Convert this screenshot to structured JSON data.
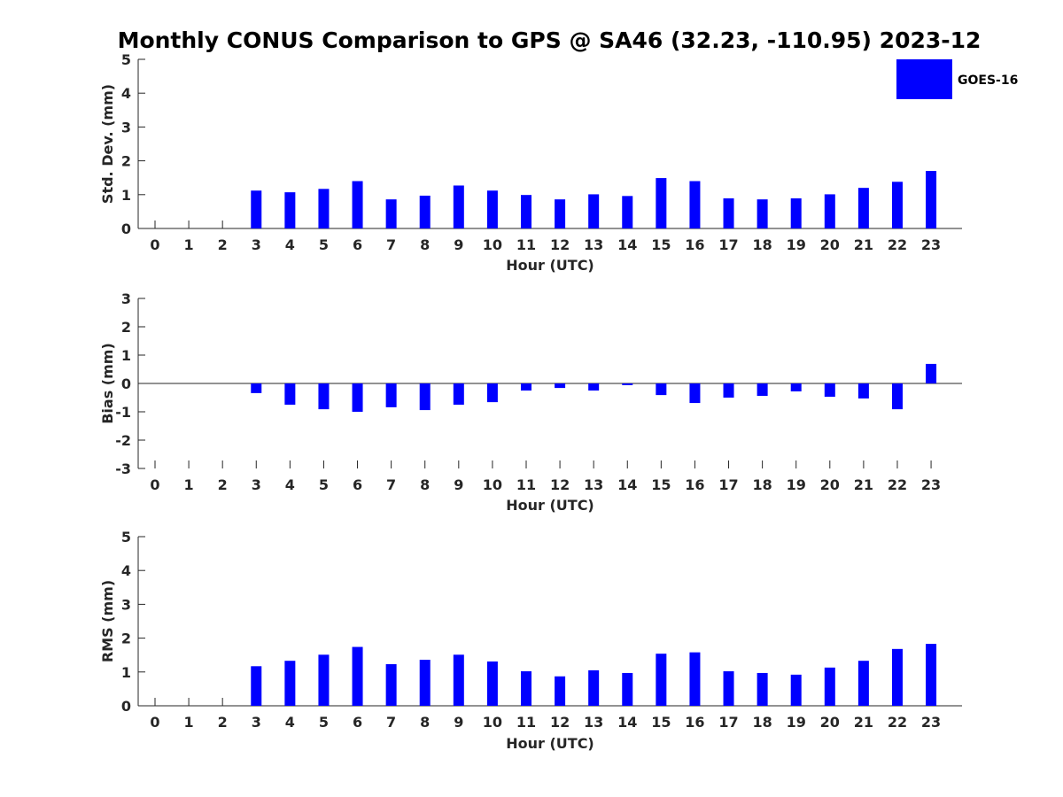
{
  "chart_data": {
    "title": "Monthly CONUS Comparison to GPS @ SA46 (32.23, -110.95) 2023-12",
    "legend": {
      "series_name": "GOES-16",
      "color": "#0000ff",
      "placement": "top-right"
    },
    "panels": [
      {
        "type": "bar",
        "xlabel": "Hour (UTC)",
        "ylabel": "Std. Dev. (mm)",
        "ylim": [
          0,
          5
        ],
        "yticks": [
          0,
          1,
          2,
          3,
          4,
          5
        ],
        "categories": [
          "0",
          "1",
          "2",
          "3",
          "4",
          "5",
          "6",
          "7",
          "8",
          "9",
          "10",
          "11",
          "12",
          "13",
          "14",
          "15",
          "16",
          "17",
          "18",
          "19",
          "20",
          "21",
          "22",
          "23"
        ],
        "series": [
          {
            "name": "GOES-16",
            "color": "#0000ff",
            "values": [
              null,
              null,
              null,
              1.12,
              1.07,
              1.17,
              1.4,
              0.86,
              0.97,
              1.27,
              1.12,
              0.99,
              0.86,
              1.01,
              0.96,
              1.49,
              1.4,
              0.89,
              0.86,
              0.89,
              1.01,
              1.2,
              1.38,
              1.7
            ]
          }
        ]
      },
      {
        "type": "bar",
        "xlabel": "Hour (UTC)",
        "ylabel": "Bias (mm)",
        "ylim": [
          -3,
          3
        ],
        "yticks": [
          -3,
          -2,
          -1,
          0,
          1,
          2,
          3
        ],
        "categories": [
          "0",
          "1",
          "2",
          "3",
          "4",
          "5",
          "6",
          "7",
          "8",
          "9",
          "10",
          "11",
          "12",
          "13",
          "14",
          "15",
          "16",
          "17",
          "18",
          "19",
          "20",
          "21",
          "22",
          "23"
        ],
        "series": [
          {
            "name": "GOES-16",
            "color": "#0000ff",
            "values": [
              null,
              null,
              null,
              -0.34,
              -0.75,
              -0.91,
              -1.0,
              -0.84,
              -0.94,
              -0.75,
              -0.66,
              -0.25,
              -0.16,
              -0.25,
              -0.06,
              -0.41,
              -0.69,
              -0.5,
              -0.44,
              -0.28,
              -0.47,
              -0.53,
              -0.91,
              0.69
            ]
          }
        ]
      },
      {
        "type": "bar",
        "xlabel": "Hour (UTC)",
        "ylabel": "RMS (mm)",
        "ylim": [
          0,
          5
        ],
        "yticks": [
          0,
          1,
          2,
          3,
          4,
          5
        ],
        "categories": [
          "0",
          "1",
          "2",
          "3",
          "4",
          "5",
          "6",
          "7",
          "8",
          "9",
          "10",
          "11",
          "12",
          "13",
          "14",
          "15",
          "16",
          "17",
          "18",
          "19",
          "20",
          "21",
          "22",
          "23"
        ],
        "series": [
          {
            "name": "GOES-16",
            "color": "#0000ff",
            "values": [
              null,
              null,
              null,
              1.17,
              1.33,
              1.51,
              1.74,
              1.23,
              1.36,
              1.51,
              1.31,
              1.02,
              0.87,
              1.05,
              0.97,
              1.54,
              1.58,
              1.02,
              0.97,
              0.92,
              1.13,
              1.33,
              1.68,
              1.83
            ]
          }
        ]
      }
    ]
  }
}
